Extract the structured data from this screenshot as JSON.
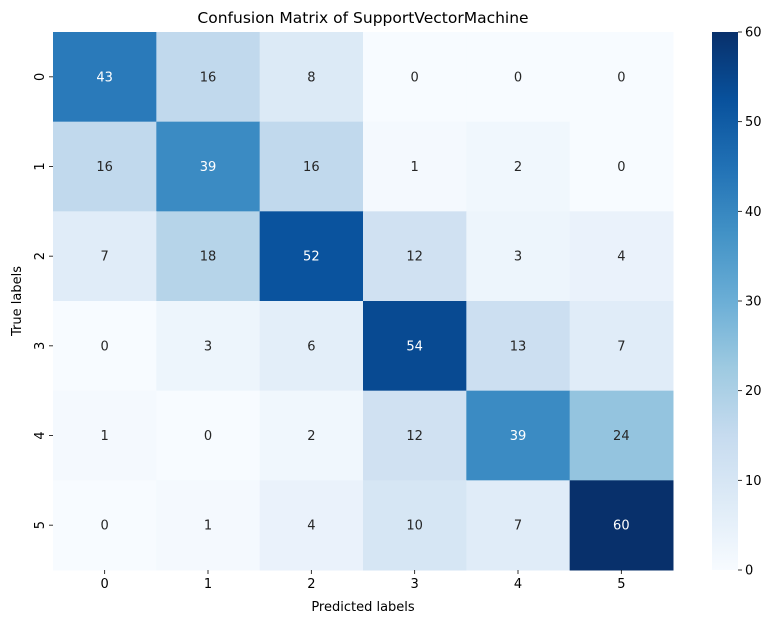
{
  "chart_data": {
    "type": "heatmap",
    "title": "Confusion Matrix of SupportVectorMachine",
    "xlabel": "Predicted labels",
    "ylabel": "True labels",
    "x_categories": [
      "0",
      "1",
      "2",
      "3",
      "4",
      "5"
    ],
    "y_categories": [
      "0",
      "1",
      "2",
      "3",
      "4",
      "5"
    ],
    "values": [
      [
        43,
        16,
        8,
        0,
        0,
        0
      ],
      [
        16,
        39,
        16,
        1,
        2,
        0
      ],
      [
        7,
        18,
        52,
        12,
        3,
        4
      ],
      [
        0,
        3,
        6,
        54,
        13,
        7
      ],
      [
        1,
        0,
        2,
        12,
        39,
        24
      ],
      [
        0,
        1,
        4,
        10,
        7,
        60
      ]
    ],
    "colormap": "Blues",
    "color_range": [
      0,
      60
    ],
    "colorbar_ticks": [
      0,
      10,
      20,
      30,
      40,
      50,
      60
    ],
    "annotate_cells": true,
    "grid": false
  }
}
